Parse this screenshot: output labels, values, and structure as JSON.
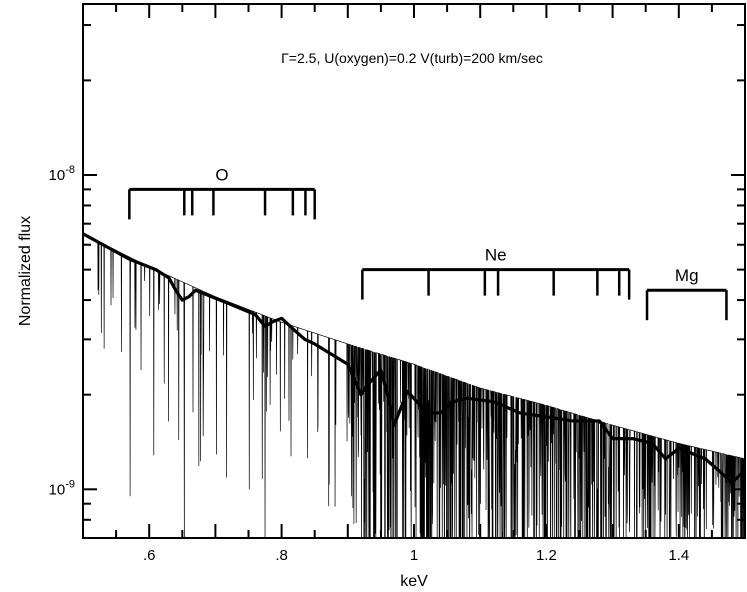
{
  "chart_data": {
    "type": "line",
    "title": "",
    "xlabel": "keV",
    "ylabel": "Normalized flux",
    "annotation": "Γ=2.5, U(oxygen)=0.2 V(turb)=200 km/sec",
    "xlim": [
      0.5,
      1.5
    ],
    "ylim": [
      7e-10,
      3.5e-08
    ],
    "yscale": "log",
    "grid": false,
    "legend": "none",
    "x_ticks": [
      0.6,
      0.8,
      1.0,
      1.2,
      1.4
    ],
    "x_tick_labels": [
      ".6",
      ".8",
      "1",
      "1.2",
      "1.4"
    ],
    "y_tick_values": [
      1e-09,
      1e-08
    ],
    "y_tick_labels": [
      {
        "mantissa": "10",
        "exponent": "-9"
      },
      {
        "mantissa": "10",
        "exponent": "-8"
      }
    ],
    "series": [
      {
        "style": "thick",
        "x": [
          0.5,
          0.57,
          0.61,
          0.63,
          0.64,
          0.65,
          0.66,
          0.67,
          0.72,
          0.76,
          0.775,
          0.785,
          0.8,
          0.82,
          0.835,
          0.85,
          0.9,
          0.92,
          0.93,
          0.95,
          0.96,
          0.97,
          0.99,
          1.02,
          1.04,
          1.06,
          1.08,
          1.12,
          1.16,
          1.2,
          1.24,
          1.28,
          1.3,
          1.33,
          1.36,
          1.38,
          1.4,
          1.42,
          1.44,
          1.46,
          1.48,
          1.5
        ],
        "y": [
          6.5e-09,
          5.4e-09,
          5e-09,
          4.7e-09,
          4.3e-09,
          4e-09,
          4.1e-09,
          4.3e-09,
          3.9e-09,
          3.6e-09,
          3.3e-09,
          3.4e-09,
          3.5e-09,
          3.2e-09,
          3e-09,
          2.9e-09,
          2.5e-09,
          2e-09,
          2.15e-09,
          2.4e-09,
          2e-09,
          1.6e-09,
          2.05e-09,
          1.75e-09,
          1.75e-09,
          1.9e-09,
          1.95e-09,
          1.9e-09,
          1.75e-09,
          1.7e-09,
          1.65e-09,
          1.65e-09,
          1.45e-09,
          1.45e-09,
          1.4e-09,
          1.25e-09,
          1.35e-09,
          1.3e-09,
          1.25e-09,
          1.15e-09,
          1.05e-09,
          1.15e-09
        ]
      },
      {
        "style": "thin",
        "description_of_content": "high-resolution absorption spectrum",
        "x": [
          0.5,
          0.6,
          0.7,
          0.8,
          0.9,
          1.0,
          1.1,
          1.2,
          1.3,
          1.4,
          1.5
        ],
        "continuum_y": [
          6.5e-09,
          5.1e-09,
          4.1e-09,
          3.4e-09,
          2.9e-09,
          2.5e-09,
          2.1e-09,
          1.85e-09,
          1.6e-09,
          1.4e-09,
          1.25e-09
        ]
      }
    ],
    "ion_markers": [
      {
        "label": "O",
        "x_start": 0.57,
        "x_end": 0.85,
        "level": 9e-09,
        "lines": [
          0.57,
          0.653,
          0.665,
          0.697,
          0.775,
          0.817,
          0.836,
          0.85
        ]
      },
      {
        "label": "Ne",
        "x_start": 0.922,
        "x_end": 1.325,
        "level": 5e-09,
        "lines": [
          0.922,
          1.022,
          1.107,
          1.127,
          1.211,
          1.277,
          1.31,
          1.325
        ]
      },
      {
        "label": "Mg",
        "x_start": 1.352,
        "x_end": 1.472,
        "level": 4.3e-09,
        "lines": [
          1.352,
          1.472
        ]
      }
    ]
  }
}
